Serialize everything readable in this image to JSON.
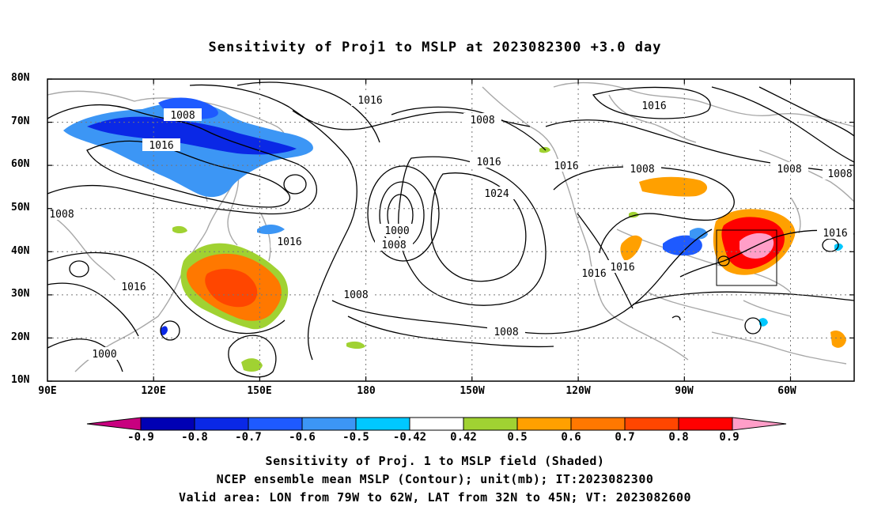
{
  "title": "Sensitivity of Proj1 to MSLP at 2023082300 +3.0 day",
  "lat_labels": [
    "80N",
    "70N",
    "60N",
    "50N",
    "40N",
    "30N",
    "20N",
    "10N"
  ],
  "lon_labels": [
    "90E",
    "120E",
    "150E",
    "180",
    "150W",
    "120W",
    "90W",
    "60W"
  ],
  "contour_labels": [
    "1016",
    "1008",
    "1016",
    "1008",
    "1016",
    "1024",
    "1000",
    "1008",
    "1016",
    "1008",
    "1016",
    "1008",
    "1000",
    "1008",
    "1016",
    "1016",
    "1008",
    "1016",
    "1016",
    "1008",
    "1008",
    "1016",
    "1016"
  ],
  "legend": {
    "labels": [
      "-0.9",
      "-0.8",
      "-0.7",
      "-0.6",
      "-0.5",
      "-0.42",
      "0.42",
      "0.5",
      "0.6",
      "0.7",
      "0.8",
      "0.9"
    ],
    "colors": [
      "#c8007f",
      "#0000b4",
      "#0a28e6",
      "#1e5aff",
      "#3c96f5",
      "#00c8ff",
      "#ffffff",
      "#a0d232",
      "#ffa000",
      "#ff7800",
      "#ff4600",
      "#ff0000",
      "#ff9ec8"
    ]
  },
  "captions": {
    "line1": "Sensitivity of Proj. 1 to MSLP field (Shaded)",
    "line2": "NCEP ensemble mean MSLP (Contour); unit(mb); IT:2023082300",
    "line3": "Valid area: LON from 79W to 62W, LAT from 32N to 45N; VT: 2023082600"
  }
}
